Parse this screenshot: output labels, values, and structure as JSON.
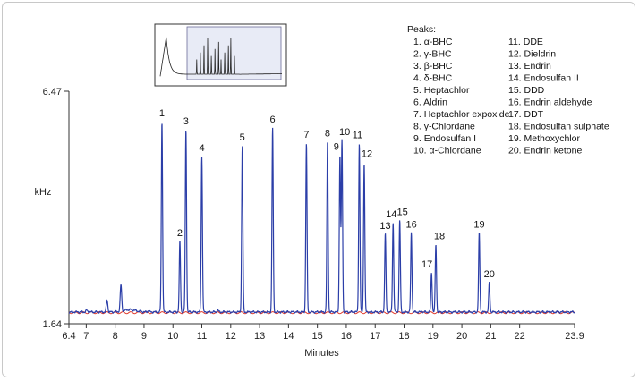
{
  "chart_data": {
    "type": "line",
    "xlabel": "Minutes",
    "ylabel": "kHz",
    "xlim": [
      6.4,
      23.9
    ],
    "ylim": [
      1.64,
      6.47
    ],
    "y_tick_labels": [
      "6.47",
      "1.64"
    ],
    "x_ticks": [
      6.4,
      7,
      8,
      9,
      10,
      11,
      12,
      13,
      14,
      15,
      16,
      17,
      18,
      19,
      20,
      21,
      22,
      23.9
    ],
    "x_tick_labels": [
      "6.4",
      "7",
      "8",
      "9",
      "10",
      "11",
      "12",
      "13",
      "14",
      "15",
      "16",
      "17",
      "18",
      "19",
      "20",
      "21",
      "22",
      "23.9"
    ],
    "grid": false,
    "series_colors": {
      "signal": "#2b3ea8",
      "baseline": "#e0392b"
    },
    "baseline": 1.7,
    "small_peaks": [
      {
        "x": 7.02,
        "y": 1.74
      },
      {
        "x": 7.72,
        "y": 1.96
      },
      {
        "x": 8.2,
        "y": 2.27
      },
      {
        "x": 9.15,
        "y": 1.73
      },
      {
        "x": 11.55,
        "y": 1.74
      }
    ],
    "peaks": [
      {
        "label": "1",
        "x": 9.62,
        "y": 5.81
      },
      {
        "label": "2",
        "x": 10.24,
        "y": 3.22
      },
      {
        "label": "3",
        "x": 10.45,
        "y": 5.64
      },
      {
        "label": "4",
        "x": 11.0,
        "y": 5.06
      },
      {
        "label": "5",
        "x": 12.4,
        "y": 5.29
      },
      {
        "label": "6",
        "x": 13.45,
        "y": 5.68
      },
      {
        "label": "7",
        "x": 14.62,
        "y": 5.35
      },
      {
        "label": "8",
        "x": 15.35,
        "y": 5.38
      },
      {
        "label": "9",
        "x": 15.78,
        "y": 5.09
      },
      {
        "label": "10",
        "x": 15.85,
        "y": 5.41
      },
      {
        "label": "11",
        "x": 16.45,
        "y": 5.34
      },
      {
        "label": "12",
        "x": 16.62,
        "y": 4.93
      },
      {
        "label": "13",
        "x": 17.35,
        "y": 3.38
      },
      {
        "label": "14",
        "x": 17.62,
        "y": 3.63
      },
      {
        "label": "15",
        "x": 17.85,
        "y": 3.68
      },
      {
        "label": "16",
        "x": 18.25,
        "y": 3.41
      },
      {
        "label": "17",
        "x": 18.95,
        "y": 2.55
      },
      {
        "label": "18",
        "x": 19.1,
        "y": 3.16
      },
      {
        "label": "19",
        "x": 20.6,
        "y": 3.41
      },
      {
        "label": "20",
        "x": 20.95,
        "y": 2.34
      }
    ],
    "legend_title": "Peaks:",
    "legend_placement": "top-right",
    "legend": [
      "1. α-BHC",
      "2. γ-BHC",
      "3. β-BHC",
      "4. δ-BHC",
      "5. Heptachlor",
      "6. Aldrin",
      "7. Heptachlor expoxide",
      "8. γ-Chlordane",
      "9. Endosulfan I",
      "10. α-Chlordane",
      "11. DDE",
      "12. Dieldrin",
      "13. Endrin",
      "14. Endosulfan II",
      "15. DDD",
      "16. Endrin aldehyde",
      "17. DDT",
      "18. Endosulfan sulphate",
      "19. Methoxychlor",
      "20. Endrin ketone"
    ],
    "inset": {
      "type": "line",
      "description_visible": false,
      "values": [
        0.1,
        0.85,
        0.55,
        0.35,
        0.25,
        0.2,
        0.16,
        0.14,
        0.12,
        0.11,
        0.1
      ]
    }
  }
}
